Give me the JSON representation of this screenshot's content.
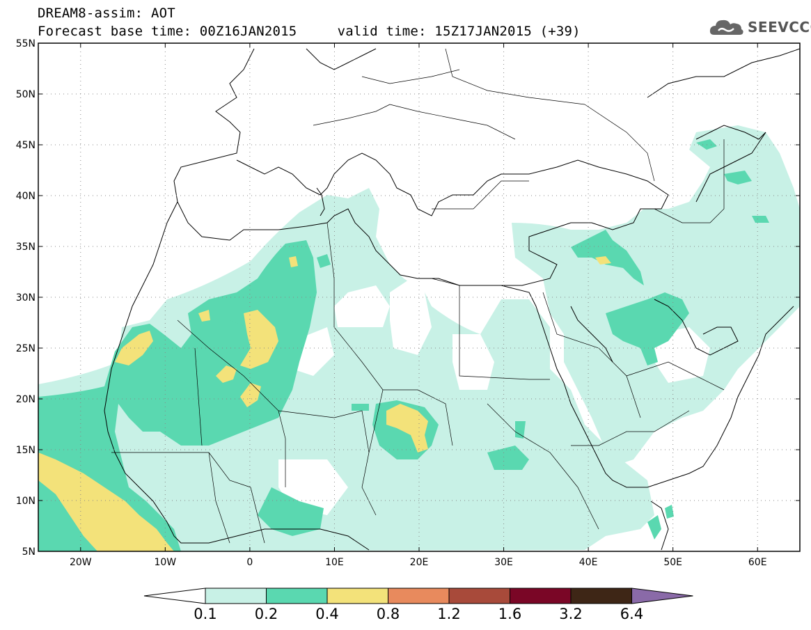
{
  "header": {
    "title": "DREAM8-assim: AOT",
    "line2": "Forecast base time: 00Z16JAN2015     valid time: 15Z17JAN2015 (+39)"
  },
  "logo": {
    "text": "SEEVCCC",
    "icon": "cloud-icon"
  },
  "map": {
    "lat_labels": [
      "55N",
      "50N",
      "45N",
      "40N",
      "35N",
      "30N",
      "25N",
      "20N",
      "15N",
      "10N",
      "5N"
    ],
    "lon_labels": [
      "20W",
      "10W",
      "0",
      "10E",
      "20E",
      "30E",
      "40E",
      "50E",
      "60E"
    ],
    "lat_range": [
      5,
      55
    ],
    "lon_range": [
      -25,
      65
    ],
    "grid": true
  },
  "colorbar": {
    "labels": [
      "0.1",
      "0.2",
      "0.4",
      "0.8",
      "1.2",
      "1.6",
      "3.2",
      "6.4"
    ],
    "colors": [
      "#ffffff",
      "#c8f1e6",
      "#5ad8b0",
      "#f3e27a",
      "#e88a5d",
      "#a84a3a",
      "#7a0626",
      "#3e2616",
      "#8a6aa8"
    ]
  },
  "colors": {
    "level1": "#c8f1e6",
    "level2": "#5ad8b0",
    "level3": "#f3e27a"
  }
}
